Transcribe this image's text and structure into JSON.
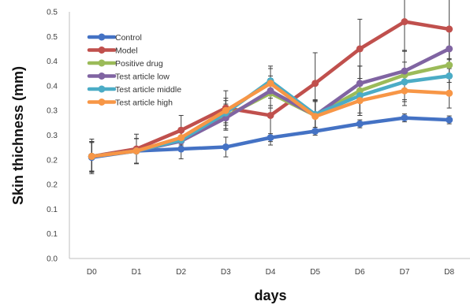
{
  "chart_data": {
    "type": "line",
    "title": "",
    "xlabel": "days",
    "ylabel": "Skin thichness (mm)",
    "categories": [
      "D0",
      "D1",
      "D2",
      "D3",
      "D4",
      "D5",
      "D6",
      "D7",
      "D8"
    ],
    "y_tick_labels": [
      "0.0",
      "0.1",
      "0.1",
      "0.2",
      "0.2",
      "0.3",
      "0.3",
      "0.4",
      "0.4",
      "0.5",
      "0.5"
    ],
    "ylim": [
      0,
      0.5
    ],
    "grid": false,
    "legend_position": "top-left",
    "series": [
      {
        "name": "Control",
        "color": "#4472C4",
        "values": [
          0.205,
          0.218,
          0.222,
          0.226,
          0.245,
          0.258,
          0.273,
          0.285,
          0.281
        ],
        "errors": [
          0.03,
          0.025,
          0.02,
          0.02,
          0.008,
          0.008,
          0.008,
          0.008,
          0.008
        ]
      },
      {
        "name": "Model",
        "color": "#C0504D",
        "values": [
          0.207,
          0.222,
          0.26,
          0.305,
          0.29,
          0.355,
          0.425,
          0.48,
          0.465
        ],
        "errors": [
          0.035,
          0.03,
          0.03,
          0.035,
          0.06,
          0.062,
          0.06,
          0.06,
          0.062
        ]
      },
      {
        "name": "Positive drug",
        "color": "#9BBB59",
        "values": [
          0.207,
          0.218,
          0.242,
          0.288,
          0.335,
          0.29,
          0.34,
          0.372,
          0.392
        ],
        "errors": [
          0.03,
          0.025,
          0.02,
          0.025,
          0.03,
          0.03,
          0.05,
          0.05,
          0.035
        ]
      },
      {
        "name": "Test article low",
        "color": "#8064A2",
        "values": [
          0.207,
          0.218,
          0.238,
          0.285,
          0.34,
          0.29,
          0.355,
          0.38,
          0.425
        ],
        "errors": [
          0.03,
          0.025,
          0.02,
          0.025,
          0.03,
          0.03,
          0.035,
          0.04,
          0.04
        ]
      },
      {
        "name": "Test article middle",
        "color": "#4BACC6",
        "values": [
          0.207,
          0.218,
          0.24,
          0.295,
          0.36,
          0.292,
          0.33,
          0.358,
          0.37
        ],
        "errors": [
          0.03,
          0.025,
          0.02,
          0.025,
          0.03,
          0.03,
          0.035,
          0.04,
          0.035
        ]
      },
      {
        "name": "Test article high",
        "color": "#F79646",
        "values": [
          0.207,
          0.218,
          0.245,
          0.3,
          0.355,
          0.288,
          0.32,
          0.34,
          0.335
        ],
        "errors": [
          0.03,
          0.025,
          0.02,
          0.025,
          0.03,
          0.03,
          0.03,
          0.03,
          0.03
        ]
      }
    ]
  }
}
